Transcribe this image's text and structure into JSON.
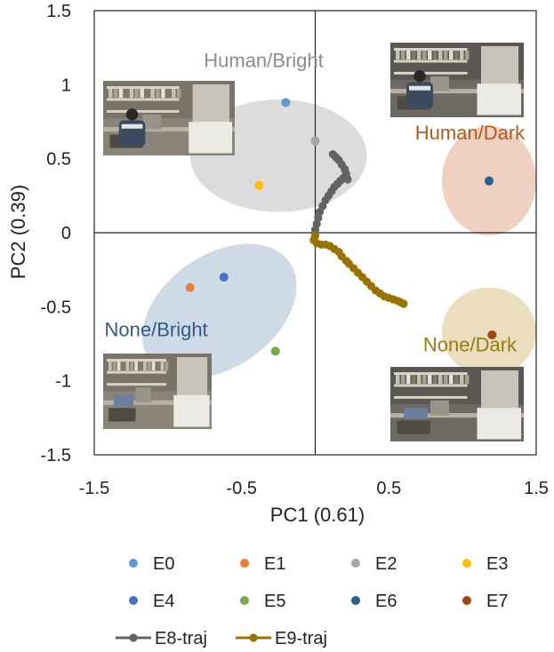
{
  "chart_data": {
    "type": "scatter",
    "title": "",
    "xlabel": "PC1 (0.61)",
    "ylabel": "PC2 (0.39)",
    "xlim": [
      -1.5,
      1.5
    ],
    "ylim": [
      -1.5,
      1.5
    ],
    "x_ticks": [
      "-1.5",
      "-0.5",
      "0.5",
      "1.5"
    ],
    "x_tick_values": [
      -1.5,
      -0.5,
      0.5,
      1.5
    ],
    "y_ticks": [
      "1.5",
      "1",
      "0.5",
      "0",
      "-0.5",
      "-1",
      "-1.5"
    ],
    "y_tick_values": [
      1.5,
      1,
      0.5,
      0,
      -0.5,
      -1,
      -1.5
    ],
    "legend_position": "bottom",
    "regions": [
      {
        "name": "Human/Bright",
        "label_color": "#8c8c8c",
        "fill": "#d6d6d6",
        "center": [
          -0.25,
          0.52
        ],
        "radius": [
          0.6,
          0.38
        ],
        "rotation_deg": 0,
        "label_at": [
          -0.35,
          1.12
        ],
        "label_anchor": "middle"
      },
      {
        "name": "Human/Dark",
        "label_color": "#b35a1f",
        "fill": "#ecc9b6",
        "center": [
          1.18,
          0.35
        ],
        "radius": [
          0.32,
          0.37
        ],
        "rotation_deg": 0,
        "label_at": [
          1.05,
          0.63
        ],
        "label_anchor": "middle"
      },
      {
        "name": "None/Bright",
        "label_color": "#2f5a8a",
        "fill": "#c5d3e0",
        "center": [
          -0.65,
          -0.53
        ],
        "radius": [
          0.58,
          0.38
        ],
        "rotation_deg": -35,
        "label_at": [
          -1.08,
          -0.7
        ],
        "label_anchor": "middle"
      },
      {
        "name": "None/Dark",
        "label_color": "#9a7a10",
        "fill": "#e8d8b4",
        "center": [
          1.18,
          -0.67
        ],
        "radius": [
          0.32,
          0.3
        ],
        "rotation_deg": 0,
        "label_at": [
          1.05,
          -0.8
        ],
        "label_anchor": "middle"
      }
    ],
    "series": [
      {
        "name": "E0",
        "color": "#5b9bd5",
        "points": [
          [
            -0.2,
            0.88
          ]
        ]
      },
      {
        "name": "E1",
        "color": "#ed7d31",
        "points": [
          [
            -0.85,
            -0.37
          ]
        ]
      },
      {
        "name": "E2",
        "color": "#a5a5a5",
        "points": [
          [
            0.0,
            0.62
          ]
        ]
      },
      {
        "name": "E3",
        "color": "#ffc000",
        "points": [
          [
            -0.38,
            0.32
          ]
        ]
      },
      {
        "name": "E4",
        "color": "#4472c4",
        "points": [
          [
            -0.62,
            -0.3
          ]
        ]
      },
      {
        "name": "E5",
        "color": "#70ad47",
        "points": [
          [
            -0.27,
            -0.8
          ]
        ]
      },
      {
        "name": "E6",
        "color": "#255e91",
        "points": [
          [
            1.18,
            0.35
          ]
        ]
      },
      {
        "name": "E7",
        "color": "#9e480e",
        "points": [
          [
            1.2,
            -0.69
          ]
        ]
      }
    ],
    "trajectories": [
      {
        "name": "E8-traj",
        "color": "#636363",
        "points": [
          [
            0.0,
            0.02
          ],
          [
            0.01,
            0.06
          ],
          [
            0.02,
            0.1
          ],
          [
            0.03,
            0.14
          ],
          [
            0.05,
            0.18
          ],
          [
            0.07,
            0.22
          ],
          [
            0.09,
            0.25
          ],
          [
            0.11,
            0.28
          ],
          [
            0.13,
            0.31
          ],
          [
            0.15,
            0.33
          ],
          [
            0.17,
            0.35
          ],
          [
            0.19,
            0.37
          ],
          [
            0.21,
            0.38
          ],
          [
            0.22,
            0.36
          ],
          [
            0.21,
            0.4
          ],
          [
            0.2,
            0.43
          ],
          [
            0.18,
            0.46
          ],
          [
            0.16,
            0.49
          ],
          [
            0.14,
            0.51
          ],
          [
            0.12,
            0.53
          ]
        ]
      },
      {
        "name": "E9-traj",
        "color": "#997300",
        "points": [
          [
            0.0,
            -0.02
          ],
          [
            -0.01,
            -0.05
          ],
          [
            0.01,
            -0.07
          ],
          [
            0.04,
            -0.08
          ],
          [
            0.07,
            -0.08
          ],
          [
            0.1,
            -0.09
          ],
          [
            0.13,
            -0.11
          ],
          [
            0.16,
            -0.13
          ],
          [
            0.18,
            -0.16
          ],
          [
            0.21,
            -0.19
          ],
          [
            0.23,
            -0.21
          ],
          [
            0.26,
            -0.24
          ],
          [
            0.29,
            -0.27
          ],
          [
            0.32,
            -0.3
          ],
          [
            0.35,
            -0.33
          ],
          [
            0.38,
            -0.36
          ],
          [
            0.41,
            -0.39
          ],
          [
            0.44,
            -0.41
          ],
          [
            0.47,
            -0.43
          ],
          [
            0.5,
            -0.44
          ],
          [
            0.53,
            -0.45
          ],
          [
            0.56,
            -0.46
          ],
          [
            0.58,
            -0.47
          ],
          [
            0.6,
            -0.48
          ]
        ]
      }
    ],
    "legend": [
      "E0",
      "E1",
      "E2",
      "E3",
      "E4",
      "E5",
      "E6",
      "E7",
      "E8-traj",
      "E9-traj"
    ]
  }
}
